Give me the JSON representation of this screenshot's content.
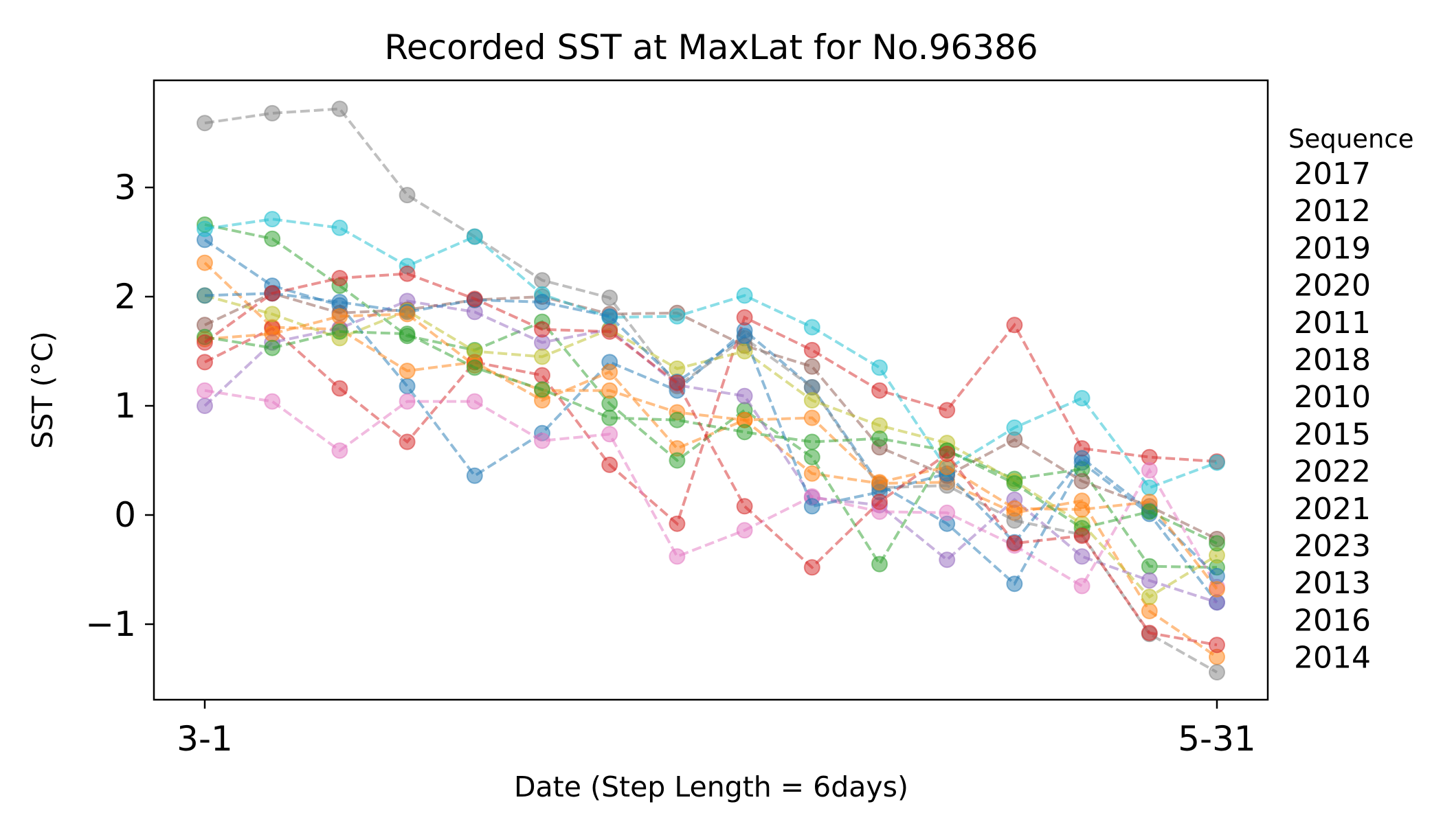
{
  "chart_data": {
    "type": "line",
    "title": "Recorded SST at MaxLat for No.96386",
    "xlabel": "Date (Step Length = 6days)",
    "ylabel": "SST (°C)",
    "x_tick_labels": [
      "3-1",
      "5-31"
    ],
    "x_range_steps": [
      0,
      15
    ],
    "y_ticks": [
      -1,
      0,
      1,
      2,
      3
    ],
    "y_tick_labels": [
      "−1",
      "0",
      "1",
      "2",
      "3"
    ],
    "ylim": [
      -1.7,
      4.0
    ],
    "grid": false,
    "legend": {
      "title": "Sequence",
      "placement": "right",
      "entries": [
        "2017",
        "2012",
        "2019",
        "2020",
        "2011",
        "2018",
        "2010",
        "2015",
        "2022",
        "2021",
        "2023",
        "2013",
        "2016",
        "2014"
      ]
    },
    "line_style": "dashed",
    "marker": "circle",
    "series": [
      {
        "color": "#1f77b4",
        "values": [
          2.52,
          2.1,
          1.92,
          1.18,
          0.36,
          0.75,
          1.4,
          1.14,
          1.69,
          1.17,
          0.28,
          -0.08,
          -0.63,
          0.48,
          0.01,
          -0.8
        ]
      },
      {
        "color": "#ff7f0e",
        "values": [
          2.31,
          1.72,
          1.7,
          1.32,
          1.4,
          1.05,
          1.31,
          0.61,
          0.87,
          0.38,
          0.29,
          0.3,
          0.02,
          0.13,
          -0.88,
          -1.3
        ]
      },
      {
        "color": "#2ca02c",
        "values": [
          2.66,
          2.53,
          2.1,
          1.64,
          1.51,
          1.77,
          1.02,
          0.5,
          0.96,
          0.53,
          -0.45,
          0.59,
          0.33,
          0.42,
          -0.47,
          -0.48
        ]
      },
      {
        "color": "#d62728",
        "values": [
          1.4,
          1.71,
          1.16,
          0.67,
          1.4,
          1.28,
          0.46,
          -0.08,
          1.81,
          1.51,
          1.14,
          0.96,
          1.74,
          0.61,
          0.53,
          0.49
        ]
      },
      {
        "color": "#9467bd",
        "values": [
          1.0,
          1.58,
          1.71,
          1.96,
          1.86,
          1.58,
          1.7,
          1.19,
          1.09,
          0.16,
          0.09,
          -0.41,
          0.14,
          -0.38,
          -0.6,
          -0.8
        ]
      },
      {
        "color": "#8c564b",
        "values": [
          1.74,
          2.03,
          1.85,
          1.88,
          1.97,
          2.0,
          1.84,
          1.85,
          1.55,
          1.36,
          0.62,
          0.36,
          0.69,
          0.31,
          0.08,
          -0.22
        ]
      },
      {
        "color": "#e377c2",
        "values": [
          1.14,
          1.04,
          0.59,
          1.04,
          1.04,
          0.68,
          0.74,
          -0.38,
          -0.14,
          0.17,
          0.03,
          0.02,
          -0.28,
          -0.65,
          0.41,
          -0.66
        ]
      },
      {
        "color": "#7f7f7f",
        "values": [
          3.59,
          3.68,
          3.72,
          2.93,
          2.55,
          2.15,
          1.99,
          1.18,
          1.62,
          1.17,
          0.25,
          0.27,
          -0.05,
          -0.18,
          -1.09,
          -1.44
        ]
      },
      {
        "color": "#bcbd22",
        "values": [
          2.01,
          1.84,
          1.62,
          1.87,
          1.5,
          1.45,
          1.7,
          1.34,
          1.5,
          1.05,
          0.82,
          0.66,
          0.31,
          -0.08,
          -0.75,
          -0.37
        ]
      },
      {
        "color": "#17becf",
        "values": [
          2.62,
          2.71,
          2.63,
          2.28,
          2.55,
          2.02,
          1.81,
          1.82,
          2.01,
          1.72,
          1.35,
          0.42,
          0.8,
          1.07,
          0.25,
          0.48
        ]
      },
      {
        "color": "#1f77b4",
        "values": [
          2.01,
          2.03,
          1.95,
          1.86,
          1.97,
          1.95,
          1.82,
          1.22,
          1.64,
          0.08,
          0.21,
          0.38,
          -0.25,
          0.52,
          0.04,
          -0.56
        ]
      },
      {
        "color": "#ff7f0e",
        "values": [
          1.61,
          1.66,
          1.82,
          1.84,
          1.37,
          1.14,
          1.14,
          0.94,
          0.87,
          0.89,
          0.3,
          0.44,
          0.06,
          0.05,
          0.12,
          -0.68
        ]
      },
      {
        "color": "#2ca02c",
        "values": [
          1.63,
          1.53,
          1.68,
          1.66,
          1.35,
          1.15,
          0.89,
          0.87,
          0.76,
          0.67,
          0.7,
          0.59,
          0.29,
          -0.12,
          0.03,
          -0.26
        ]
      },
      {
        "color": "#d62728",
        "values": [
          1.58,
          2.03,
          2.17,
          2.21,
          1.98,
          1.7,
          1.68,
          1.21,
          0.08,
          -0.48,
          0.12,
          0.56,
          -0.26,
          -0.19,
          -1.08,
          -1.19
        ]
      }
    ]
  }
}
